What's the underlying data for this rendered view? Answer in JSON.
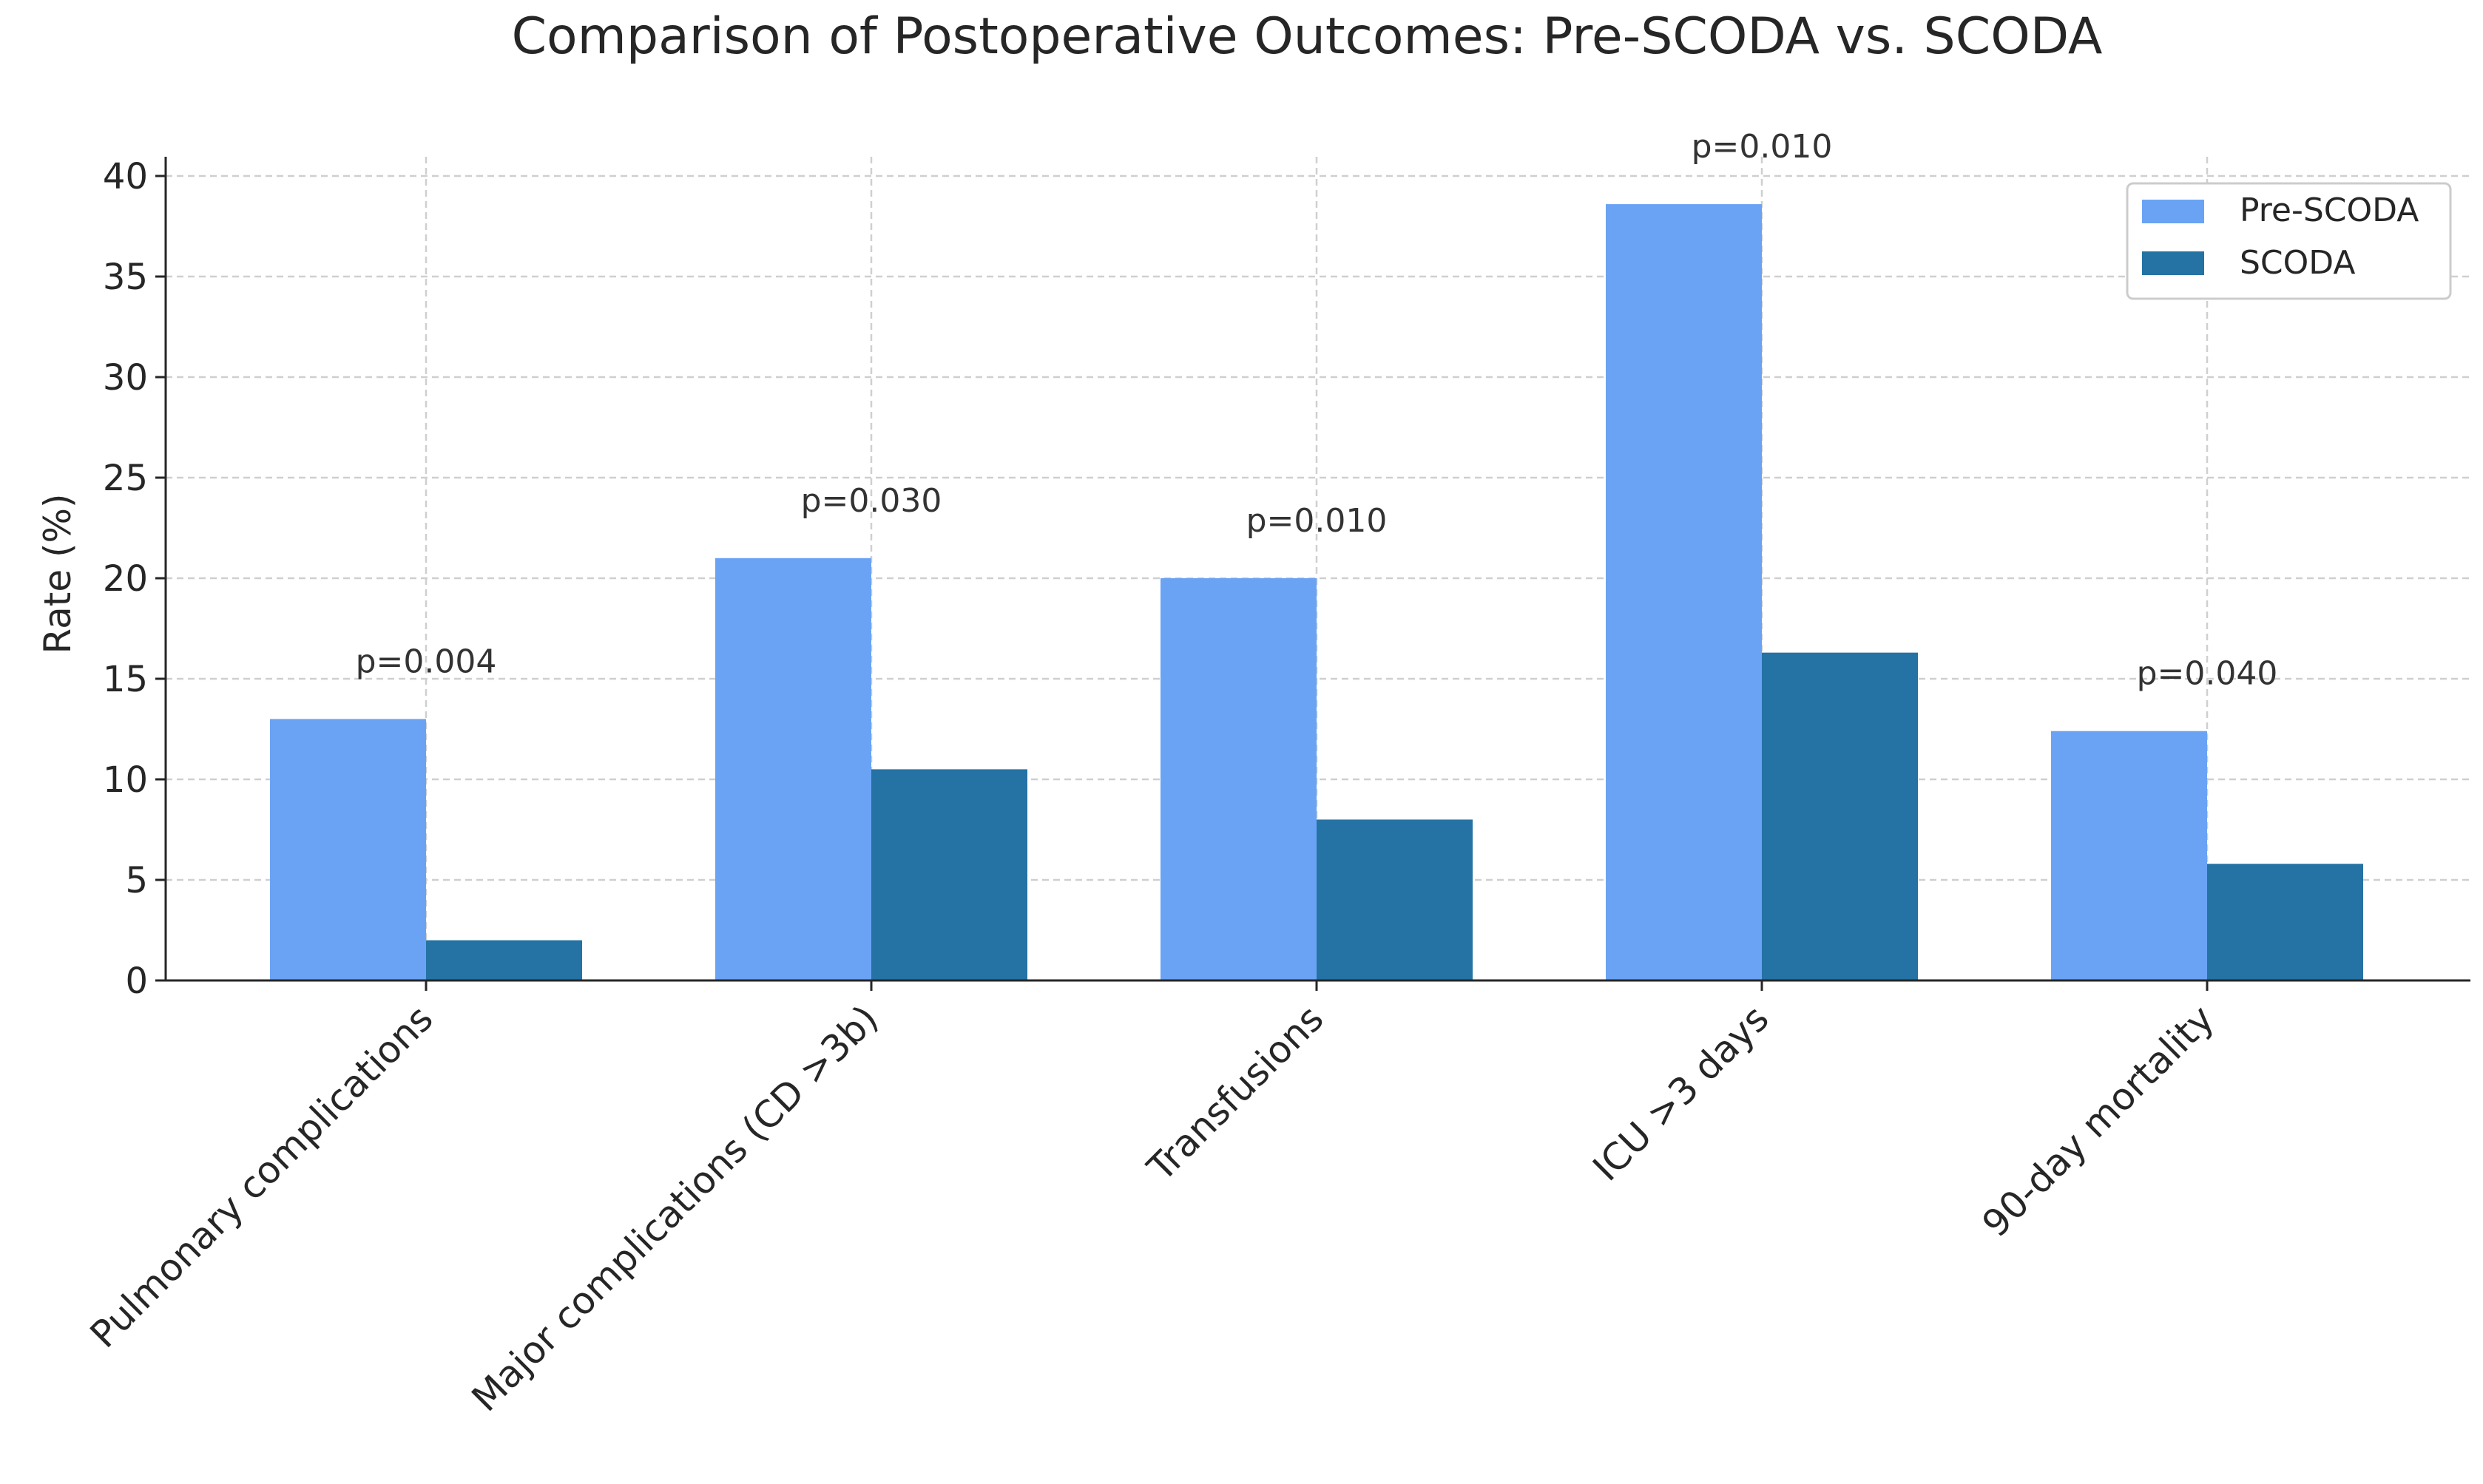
{
  "chart_data": {
    "type": "bar",
    "title": "Comparison of Postoperative Outcomes: Pre-SCODA vs. SCODA",
    "xlabel": "",
    "ylabel": "Rate (%)",
    "ylim": [
      0,
      40
    ],
    "yticks": [
      0,
      5,
      10,
      15,
      20,
      25,
      30,
      35,
      40
    ],
    "ytick_labels": [
      "0",
      "5",
      "10",
      "15",
      "20",
      "25",
      "30",
      "35",
      "40"
    ],
    "grid": true,
    "legend_position": "top-right",
    "categories": [
      "Pulmonary complications",
      "Major complications (CD >3b)",
      "Transfusions",
      "ICU >3 days",
      "90-day mortality"
    ],
    "series": [
      {
        "name": "Pre-SCODA",
        "color": "#6aa3f4",
        "values": [
          13.0,
          21.0,
          20.0,
          38.6,
          12.4
        ]
      },
      {
        "name": "SCODA",
        "color": "#2572a4",
        "values": [
          2.0,
          10.5,
          8.0,
          16.3,
          5.8
        ]
      }
    ],
    "annotations": [
      "p=0.004",
      "p=0.030",
      "p=0.010",
      "p=0.010",
      "p=0.040"
    ]
  }
}
